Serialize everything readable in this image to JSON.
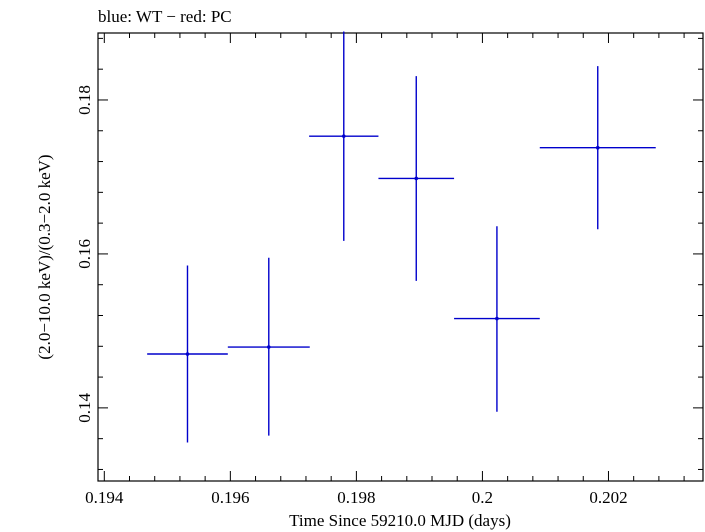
{
  "chart_data": {
    "type": "scatter",
    "title": "blue: WT − red: PC",
    "xlabel": "Time Since 59210.0 MJD (days)",
    "ylabel": "(2.0−10.0 keV)/(0.3−2.0 keV)",
    "xlim": [
      0.1939,
      0.2035
    ],
    "ylim": [
      0.1305,
      0.1887
    ],
    "x_ticks": [
      0.194,
      0.196,
      0.198,
      0.2,
      0.202
    ],
    "x_tick_labels": [
      "0.194",
      "0.196",
      "0.198",
      "0.2",
      "0.202"
    ],
    "y_ticks": [
      0.14,
      0.16,
      0.18
    ],
    "y_tick_labels": [
      "0.14",
      "0.16",
      "0.18"
    ],
    "grid": false,
    "series": [
      {
        "name": "WT",
        "color": "#0000cc",
        "points": [
          {
            "x": 0.19532,
            "xerr": 0.00064,
            "y": 0.147,
            "yerr_low": 0.0115,
            "yerr_high": 0.0115
          },
          {
            "x": 0.19661,
            "xerr": 0.00065,
            "y": 0.1479,
            "yerr_low": 0.0115,
            "yerr_high": 0.0116
          },
          {
            "x": 0.1978,
            "xerr": 0.00055,
            "y": 0.1753,
            "yerr_low": 0.0136,
            "yerr_high": 0.0136
          },
          {
            "x": 0.19895,
            "xerr": 0.0006,
            "y": 0.1698,
            "yerr_low": 0.0133,
            "yerr_high": 0.0133
          },
          {
            "x": 0.20023,
            "xerr": 0.00068,
            "y": 0.1516,
            "yerr_low": 0.0121,
            "yerr_high": 0.012
          },
          {
            "x": 0.20183,
            "xerr": 0.00092,
            "y": 0.1738,
            "yerr_low": 0.0106,
            "yerr_high": 0.0106
          }
        ]
      }
    ]
  }
}
